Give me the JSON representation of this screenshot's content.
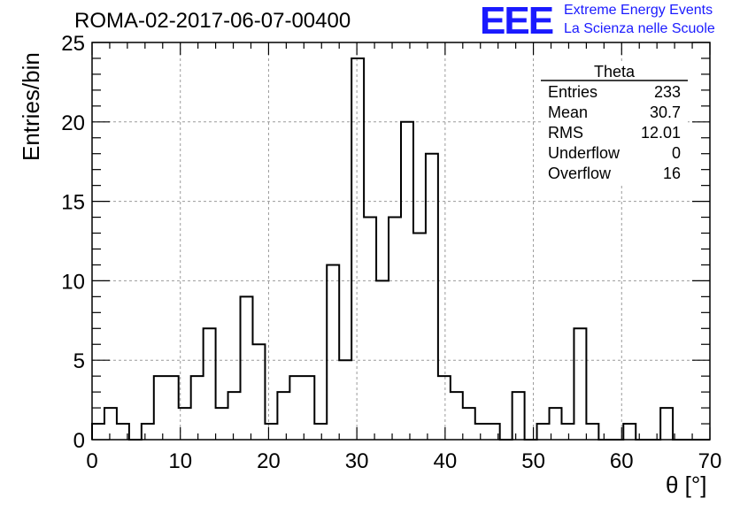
{
  "header": {
    "title": "ROMA-02-2017-06-07-00400",
    "logo_mark": "EEE",
    "logo_line1": "Extreme Energy Events",
    "logo_line2": "La Scienza nelle Scuole"
  },
  "stats": {
    "name": "Theta",
    "rows": [
      {
        "label": "Entries",
        "value": "233"
      },
      {
        "label": "Mean",
        "value": "30.7"
      },
      {
        "label": "RMS",
        "value": "12.01"
      },
      {
        "label": "Underflow",
        "value": "0"
      },
      {
        "label": "Overflow",
        "value": "16"
      }
    ]
  },
  "colors": {
    "line": "#000000",
    "grid": "#9a9a9a",
    "logo": "#1a1aff"
  },
  "chart_data": {
    "type": "bar",
    "style": "step-histogram",
    "xlabel": "θ [°]",
    "ylabel": "Entries/bin",
    "xlim": [
      0,
      70
    ],
    "ylim": [
      0,
      25
    ],
    "bin_width": 1.4,
    "x_ticks": [
      0,
      10,
      20,
      30,
      40,
      50,
      60,
      70
    ],
    "y_ticks": [
      0,
      5,
      10,
      15,
      20,
      25
    ],
    "grid": true,
    "legend": "top-right",
    "values": [
      1,
      2,
      1,
      0,
      1,
      4,
      4,
      2,
      4,
      7,
      2,
      3,
      9,
      6,
      1,
      3,
      4,
      4,
      1,
      11,
      5,
      24,
      14,
      10,
      14,
      20,
      13,
      18,
      4,
      3,
      2,
      1,
      1,
      0,
      3,
      0,
      1,
      2,
      1,
      7,
      1,
      0,
      0,
      1,
      0,
      0,
      2,
      0,
      0,
      0
    ]
  }
}
